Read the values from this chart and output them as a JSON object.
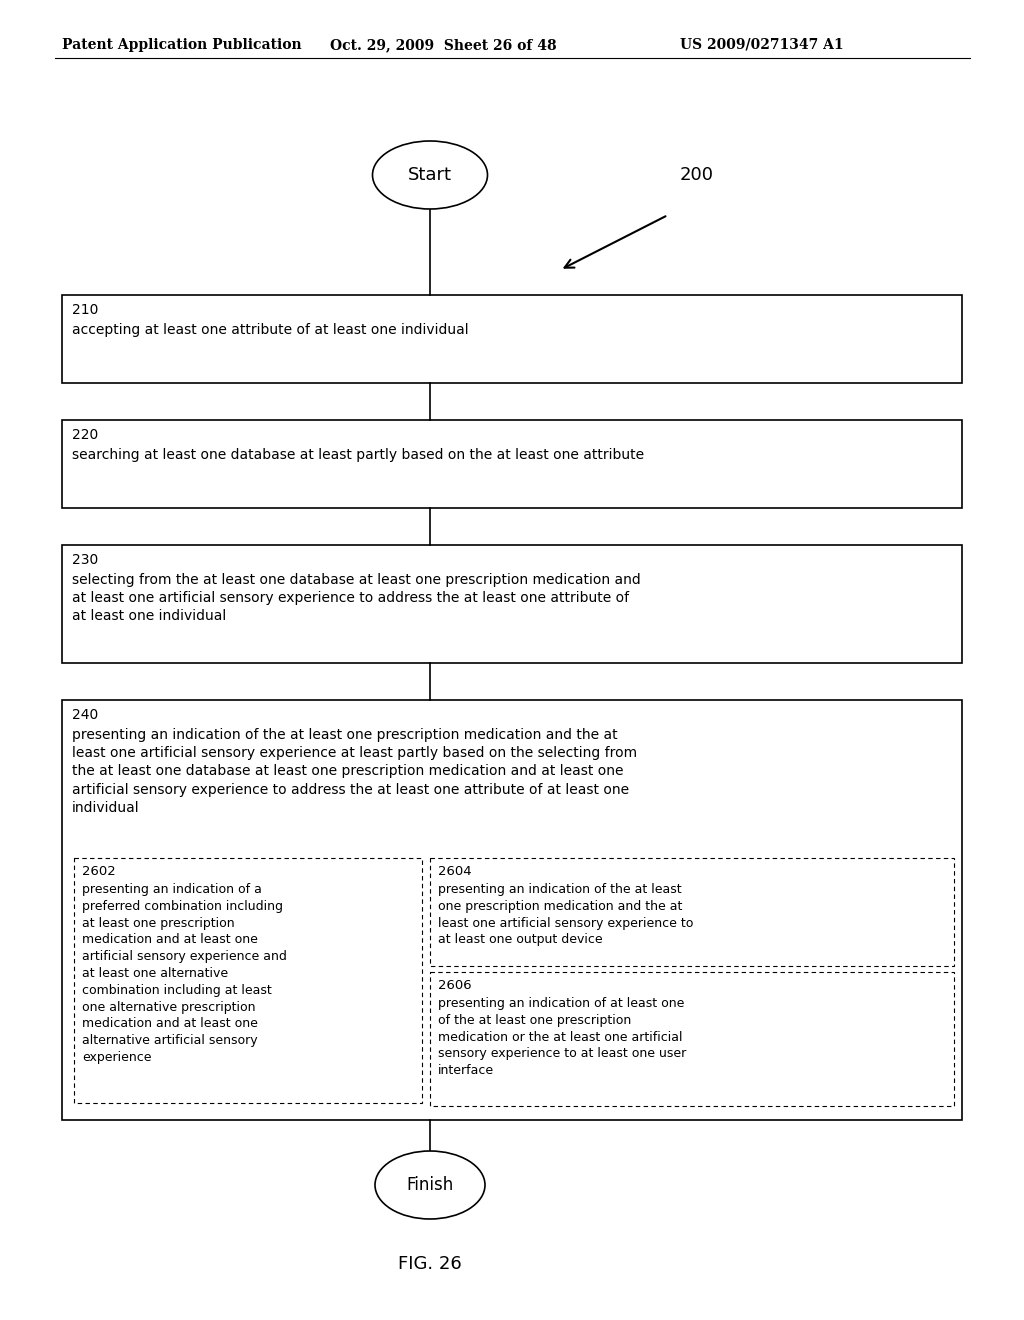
{
  "bg_color": "#ffffff",
  "header_left": "Patent Application Publication",
  "header_mid": "Oct. 29, 2009  Sheet 26 of 48",
  "header_right": "US 2009/0271347 A1",
  "figure_label": "FIG. 26",
  "diagram_label": "200",
  "start_label": "Start",
  "finish_label": "Finish",
  "box210_label": "210",
  "box210_text": "accepting at least one attribute of at least one individual",
  "box220_label": "220",
  "box220_text": "searching at least one database at least partly based on the at least one attribute",
  "box230_label": "230",
  "box230_text": "selecting from the at least one database at least one prescription medication and\nat least one artificial sensory experience to address the at least one attribute of\nat least one individual",
  "box240_label": "240",
  "box240_text": "presenting an indication of the at least one prescription medication and the at\nleast one artificial sensory experience at least partly based on the selecting from\nthe at least one database at least one prescription medication and at least one\nartificial sensory experience to address the at least one attribute of at least one\nindividual",
  "box2602_label": "2602",
  "box2602_text": "presenting an indication of a\npreferred combination including\nat least one prescription\nmedication and at least one\nartificial sensory experience and\nat least one alternative\ncombination including at least\none alternative prescription\nmedication and at least one\nalternative artificial sensory\nexperience",
  "box2604_label": "2604",
  "box2604_text": "presenting an indication of the at least\none prescription medication and the at\nleast one artificial sensory experience to\nat least one output device",
  "box2606_label": "2606",
  "box2606_text": "presenting an indication of at least one\nof the at least one prescription\nmedication or the at least one artificial\nsensory experience to at least one user\ninterface"
}
